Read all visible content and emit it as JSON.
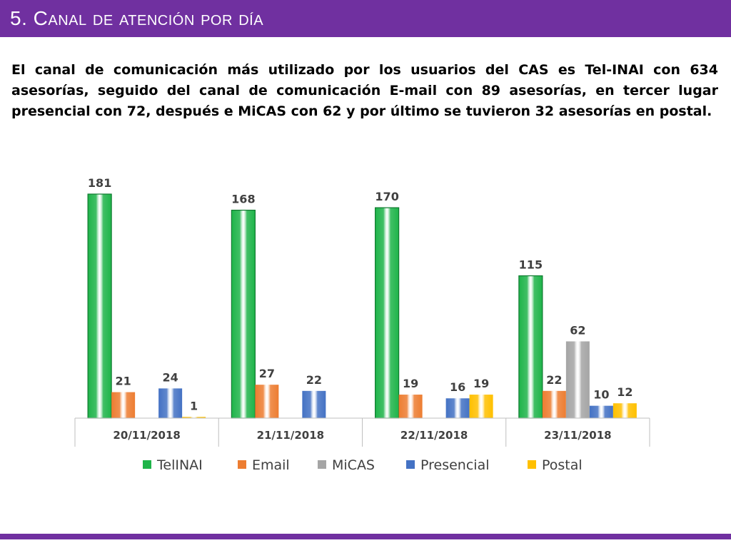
{
  "slide": {
    "title": "5. Canal de atención por día",
    "summary": "El canal de comunicación más utilizado por los usuarios del CAS es Tel-INAI con 634 asesorías, seguido del canal de comunicación E-mail con 89 asesorías, en tercer lugar presencial con 72, después e MiCAS con 62 y por último se tuvieron 32 asesorías en postal.",
    "accent_color": "#7030a0"
  },
  "chart_data": {
    "type": "bar",
    "title": "",
    "xlabel": "",
    "ylabel": "",
    "ylim": [
      0,
      181
    ],
    "grid": false,
    "legend_position": "bottom",
    "categories": [
      "20/11/2018",
      "21/11/2018",
      "22/11/2018",
      "23/11/2018"
    ],
    "series": [
      {
        "name": "TelINAI",
        "color": "#1fb44a",
        "values": [
          181,
          168,
          170,
          115
        ]
      },
      {
        "name": "Email",
        "color": "#ed7d31",
        "values": [
          21,
          27,
          19,
          22
        ]
      },
      {
        "name": "MiCAS",
        "color": "#a5a5a5",
        "values": [
          null,
          null,
          null,
          62
        ]
      },
      {
        "name": "Presencial",
        "color": "#4472c4",
        "values": [
          24,
          22,
          16,
          10
        ]
      },
      {
        "name": "Postal",
        "color": "#ffc000",
        "values": [
          1,
          null,
          19,
          12
        ]
      }
    ]
  }
}
